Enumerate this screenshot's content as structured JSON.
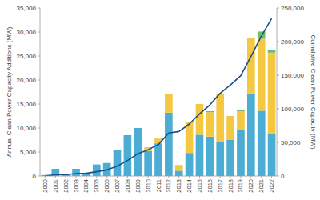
{
  "chart_data": {
    "type": "bar",
    "stacked": true,
    "grid": false,
    "ylabel": "Annual Clean Power Capacity Additions (MW)",
    "y2label": "Cumulative Clean Power Capacity (MW)",
    "categories": [
      "2000",
      "2001",
      "2002",
      "2003",
      "2004",
      "2005",
      "2006",
      "2007",
      "2008",
      "2009",
      "2010",
      "2011",
      "2012",
      "2013",
      "2014",
      "2015",
      "2016",
      "2017",
      "2018",
      "2019",
      "2020",
      "2021",
      "2022"
    ],
    "series": [
      {
        "type": "bar",
        "color": "#4BACD4",
        "values": [
          200,
          1500,
          400,
          1500,
          400,
          2400,
          2700,
          5500,
          8500,
          10000,
          5200,
          6800,
          13200,
          1100,
          4800,
          8600,
          8200,
          7000,
          7500,
          9500,
          17200,
          13600,
          8700
        ]
      },
      {
        "type": "bar",
        "color": "#F5C842",
        "values": [
          0,
          0,
          0,
          0,
          0,
          0,
          0,
          0,
          0,
          0,
          800,
          1000,
          3800,
          1200,
          6400,
          6400,
          5100,
          10200,
          5000,
          4000,
          11500,
          15000,
          17000
        ]
      },
      {
        "type": "bar",
        "color": "#6DBD6D",
        "values": [
          0,
          0,
          0,
          0,
          0,
          0,
          0,
          0,
          0,
          0,
          0,
          0,
          0,
          0,
          0,
          0,
          200,
          0,
          0,
          200,
          0,
          1500,
          600
        ]
      },
      {
        "type": "line",
        "axis": "y2",
        "color": "#1A4F8A",
        "values": [
          200,
          1700,
          2100,
          3600,
          4000,
          6400,
          9100,
          14600,
          23100,
          33100,
          39100,
          46900,
          63900,
          66200,
          77400,
          92400,
          105900,
          123100,
          135600,
          149300,
          178000,
          208100,
          234300
        ]
      }
    ],
    "ylim": [
      0,
      35000
    ],
    "yticks": [
      0,
      {
        "value": 5000,
        "label": "5,000"
      },
      {
        "value": 10000,
        "label": "10,000"
      },
      {
        "value": 15000,
        "label": "15,000"
      },
      {
        "value": 20000,
        "label": "20,000"
      },
      {
        "value": 25000,
        "label": "25,000"
      },
      {
        "value": 30000,
        "label": "30,000"
      },
      {
        "value": 35000,
        "label": "35,000"
      }
    ],
    "y2lim": [
      0,
      250000
    ],
    "y2ticks": [
      0,
      {
        "value": 50000,
        "label": "50,000"
      },
      {
        "value": 100000,
        "label": "100,000"
      },
      {
        "value": 150000,
        "label": "150,000"
      },
      {
        "value": 200000,
        "label": "200,000"
      },
      {
        "value": 250000,
        "label": "250,000"
      }
    ]
  }
}
